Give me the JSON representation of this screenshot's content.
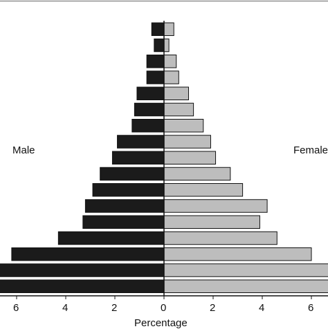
{
  "chart_data": {
    "type": "bar",
    "orientation": "horizontal",
    "subtype": "population-pyramid",
    "title": "",
    "xlabel": "Percentage",
    "ylabel": "",
    "xlim": [
      -6.6,
      6.6
    ],
    "xticks": [
      6,
      4,
      2,
      0,
      2,
      4,
      6
    ],
    "grid": false,
    "legend": "none",
    "bars_order": "top-to-bottom",
    "series": [
      {
        "name": "Male",
        "color": "#1b1b1b",
        "values": [
          0.5,
          0.4,
          0.7,
          0.7,
          1.1,
          1.2,
          1.3,
          1.9,
          2.1,
          2.6,
          2.9,
          3.2,
          3.3,
          4.3,
          6.2,
          7.0,
          7.0
        ]
      },
      {
        "name": "Female",
        "color": "#bdbdbd",
        "values": [
          0.4,
          0.2,
          0.5,
          0.6,
          1.0,
          1.2,
          1.6,
          1.9,
          2.1,
          2.7,
          3.2,
          4.2,
          3.9,
          4.6,
          6.0,
          7.0,
          7.0
        ]
      }
    ]
  }
}
